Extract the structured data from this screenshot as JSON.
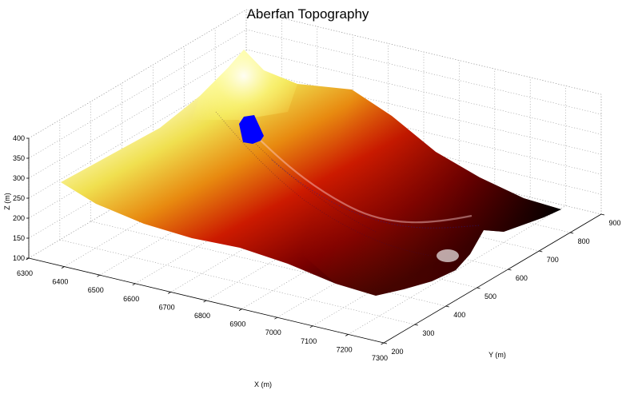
{
  "chart_data": {
    "type": "surface",
    "title": "Aberfan Topography",
    "xlabel": "X (m)",
    "ylabel": "Y (m)",
    "zlabel": "Z (m)",
    "xlim": [
      6300,
      7300
    ],
    "ylim": [
      200,
      900
    ],
    "zlim": [
      100,
      400
    ],
    "x_ticks": [
      "6300",
      "6400",
      "6500",
      "6600",
      "6700",
      "6800",
      "6900",
      "7000",
      "7100",
      "7200",
      "7300"
    ],
    "y_ticks": [
      "200",
      "300",
      "400",
      "500",
      "600",
      "700",
      "800",
      "900"
    ],
    "z_ticks": [
      "100",
      "150",
      "200",
      "250",
      "300",
      "350",
      "400"
    ],
    "grid": true,
    "colormap": "hot",
    "colors": {
      "low": "#000000",
      "mid": "#c40000",
      "high": "#ffff80",
      "marker": "#0000ff"
    }
  }
}
